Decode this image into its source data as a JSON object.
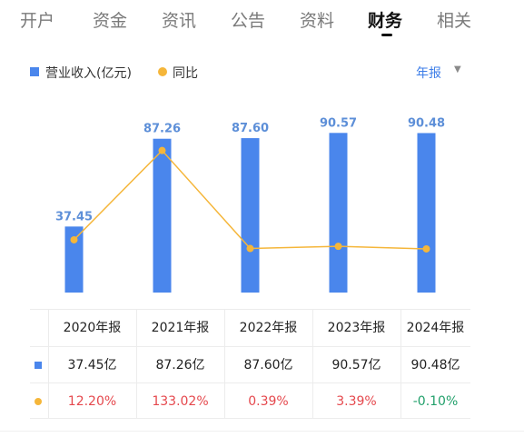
{
  "tabs": [
    {
      "label": "开户",
      "active": false
    },
    {
      "label": "资金",
      "active": false
    },
    {
      "label": "资讯",
      "active": false
    },
    {
      "label": "公告",
      "active": false
    },
    {
      "label": "资料",
      "active": false
    },
    {
      "label": "财务",
      "active": true
    },
    {
      "label": "相关",
      "active": false
    }
  ],
  "legend": {
    "revenue_label": "营业收入(亿元)",
    "yoy_label": "同比"
  },
  "period_selector": {
    "label": "年报",
    "icon": "caret-down-icon"
  },
  "colors": {
    "bar": "#4a86ec",
    "line": "#f5b63a",
    "bar_label": "#5d8fd8",
    "positive": "#e5484d",
    "negative": "#22a06b",
    "accent_link": "#3e7ee8"
  },
  "chart_data": {
    "type": "bar",
    "categories": [
      "2020年报",
      "2021年报",
      "2022年报",
      "2023年报",
      "2024年报"
    ],
    "series": [
      {
        "name": "营业收入(亿元)",
        "type": "bar",
        "values": [
          37.45,
          87.26,
          87.6,
          90.57,
          90.48
        ]
      },
      {
        "name": "同比",
        "type": "line",
        "values": [
          12.2,
          133.02,
          0.39,
          3.39,
          -0.1
        ]
      }
    ],
    "bar_data_labels": [
      "37.45",
      "87.26",
      "87.60",
      "90.57",
      "90.48"
    ],
    "ylim_bar": [
      0,
      100
    ],
    "ylim_line": [
      -10,
      140
    ],
    "grid": false,
    "legend_position": "top-left"
  },
  "table": {
    "headers": [
      "2020年报",
      "2021年报",
      "2022年报",
      "2023年报",
      "2024年报"
    ],
    "revenue_row": [
      "37.45亿",
      "87.26亿",
      "87.60亿",
      "90.57亿",
      "90.48亿"
    ],
    "yoy_row": [
      "12.20%",
      "133.02%",
      "0.39%",
      "3.39%",
      "-0.10%"
    ]
  }
}
